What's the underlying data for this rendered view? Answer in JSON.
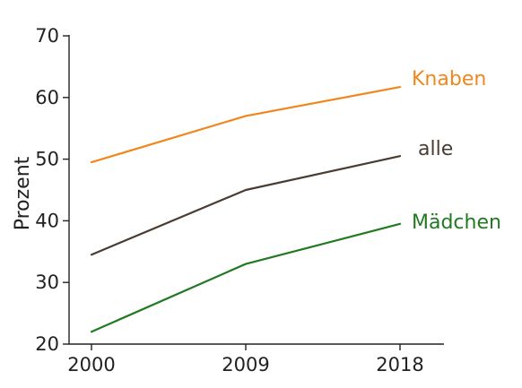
{
  "chart_data": {
    "type": "line",
    "title": "",
    "xlabel": "",
    "ylabel": "Prozent",
    "x": [
      "2000",
      "2009",
      "2018"
    ],
    "yticks": [
      "20",
      "30",
      "40",
      "50",
      "60",
      "70"
    ],
    "ylim": [
      20,
      70
    ],
    "grid": false,
    "legend": "direct-labels-right",
    "series": [
      {
        "name": "Knaben",
        "values": [
          49.5,
          57,
          61.7
        ],
        "color": "#f0871e"
      },
      {
        "name": "alle",
        "values": [
          34.5,
          45,
          50.5
        ],
        "color": "#4a3c32"
      },
      {
        "name": "Mädchen",
        "values": [
          22,
          33,
          39.5
        ],
        "color": "#217a21"
      }
    ]
  }
}
